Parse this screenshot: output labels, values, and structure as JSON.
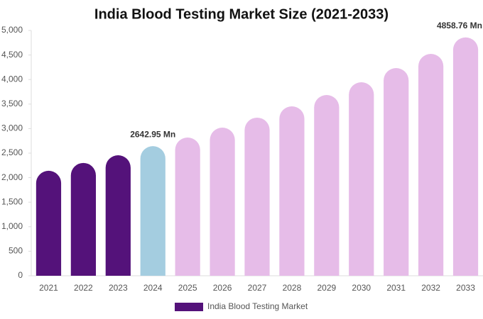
{
  "chart_data": {
    "type": "bar",
    "title": "India Blood Testing Market Size (2021-2033)",
    "categories": [
      "2021",
      "2022",
      "2023",
      "2024",
      "2025",
      "2026",
      "2027",
      "2028",
      "2029",
      "2030",
      "2031",
      "2032",
      "2033"
    ],
    "series": [
      {
        "name": "India Blood Testing Market",
        "color": "#54127a",
        "values": [
          2140,
          2300,
          2457,
          2642.95,
          2818,
          3020,
          3223,
          3454,
          3685,
          3945,
          4234,
          4523,
          4858.76
        ],
        "colors": [
          "#54127a",
          "#54127a",
          "#54127a",
          "#a4cde0",
          "#e6bce8",
          "#e6bce8",
          "#e6bce8",
          "#e6bce8",
          "#e6bce8",
          "#e6bce8",
          "#e6bce8",
          "#e6bce8",
          "#e6bce8"
        ],
        "value_labels": [
          null,
          null,
          null,
          "2642.95 Mn",
          null,
          null,
          null,
          null,
          null,
          null,
          null,
          null,
          "4858.76 Mn"
        ]
      }
    ],
    "ylim": [
      0,
      5000
    ],
    "yticks": [
      0,
      500,
      {
        "value": 1000,
        "label": "1,000"
      },
      {
        "value": 1500,
        "label": "1,500"
      },
      {
        "value": 2000,
        "label": "2,000"
      },
      {
        "value": 2500,
        "label": "2,500"
      },
      {
        "value": 3000,
        "label": "3,000"
      },
      {
        "value": 3500,
        "label": "3,500"
      },
      {
        "value": 4000,
        "label": "4,000"
      },
      {
        "value": 4500,
        "label": "4,500"
      },
      {
        "value": 5000,
        "label": "5,000"
      }
    ],
    "grid": false,
    "legend": "bottom"
  }
}
